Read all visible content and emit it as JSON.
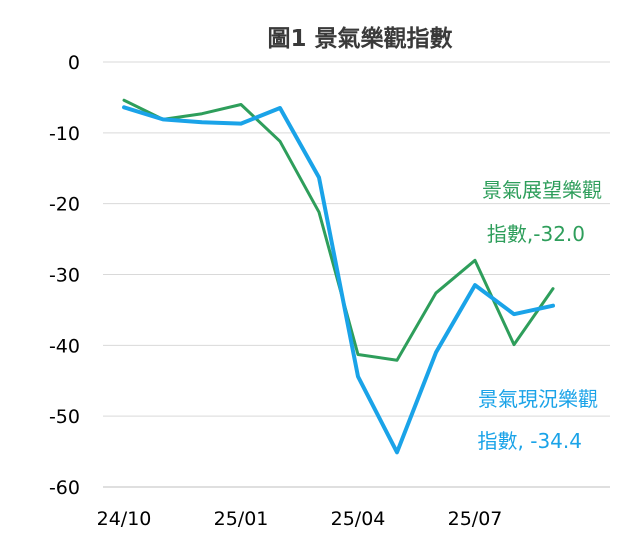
{
  "chart_data": {
    "type": "line",
    "title": "圖1  景氣樂觀指數",
    "xlabel": "",
    "ylabel": "",
    "ylim": [
      -60,
      0
    ],
    "yticks": [
      0,
      -10,
      -20,
      -30,
      -40,
      -50,
      -60
    ],
    "x_tick_labels": [
      "24/10",
      "25/01",
      "25/04",
      "25/07"
    ],
    "x": [
      "2024-10",
      "2024-11",
      "2024-12",
      "2025-01",
      "2025-02",
      "2025-03",
      "2025-04",
      "2025-05",
      "2025-06",
      "2025-07",
      "2025-08",
      "2025-09"
    ],
    "grid": "horizontal",
    "series": [
      {
        "key": "outlook",
        "color": "#2e9e5b",
        "values": [
          -5.4,
          -8.1,
          -7.3,
          -6.0,
          -11.2,
          -21.2,
          -41.3,
          -42.1,
          -32.6,
          -28.0,
          -39.9,
          -32.0
        ],
        "label_line1": "景氣展望樂觀",
        "label_line2": "指數,-32.0"
      },
      {
        "key": "current",
        "color": "#1aa3e8",
        "values": [
          -6.4,
          -8.1,
          -8.5,
          -8.7,
          -6.5,
          -16.3,
          -44.4,
          -55.1,
          -41.0,
          -31.5,
          -35.6,
          -34.4
        ],
        "label_line1": "景氣現況樂觀",
        "label_line2": "指數, -34.4"
      }
    ]
  }
}
